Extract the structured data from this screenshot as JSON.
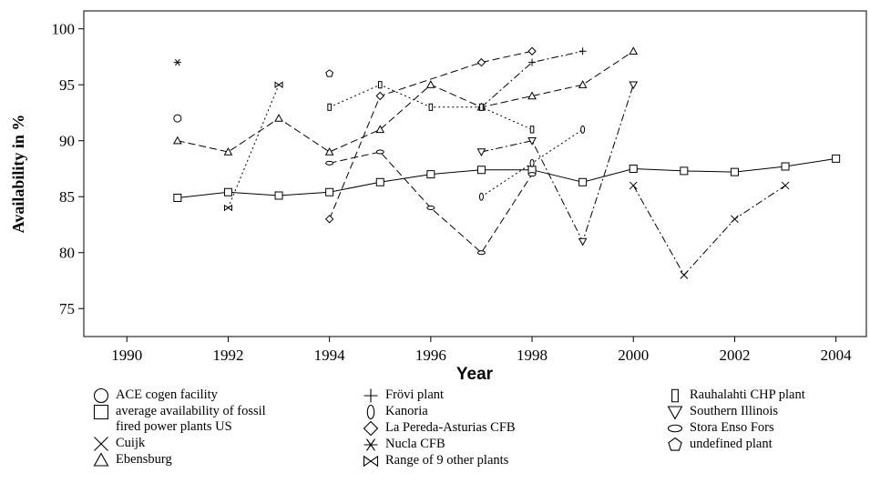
{
  "chart_data": {
    "type": "line",
    "y_label": "Availability in %",
    "x_label": "Year",
    "xlim": [
      1989.15,
      2004.6
    ],
    "ylim": [
      72.5,
      101.6
    ],
    "xticks": [
      1990,
      1992,
      1994,
      1996,
      1998,
      2000,
      2002,
      2004
    ],
    "yticks": [
      75,
      80,
      85,
      90,
      95,
      100
    ],
    "grid": false,
    "series": [
      {
        "name": "ACE cogen facility",
        "color": "#000000",
        "marker": "circle",
        "dash": "none",
        "x": [
          1991
        ],
        "values": [
          92
        ]
      },
      {
        "name": "average availability of fossil fired power plants US",
        "color": "#000000",
        "marker": "square",
        "dash": "solid",
        "x": [
          1991,
          1992,
          1993,
          1994,
          1995,
          1996,
          1997,
          1998,
          1999,
          2000,
          2001,
          2002,
          2003,
          2004
        ],
        "values": [
          84.9,
          85.4,
          85.1,
          85.4,
          86.3,
          87.0,
          87.4,
          87.4,
          86.3,
          87.5,
          87.3,
          87.2,
          87.7,
          88.4
        ]
      },
      {
        "name": "Cuijk",
        "color": "#000000",
        "marker": "x",
        "dash": "dashdot",
        "x": [
          2000,
          2001,
          2002,
          2003
        ],
        "values": [
          86,
          78,
          83,
          86
        ]
      },
      {
        "name": "Ebensburg",
        "color": "#000000",
        "marker": "triangle",
        "dash": "dashed",
        "x": [
          1991,
          1992,
          1993,
          1994,
          1995,
          1996,
          1997,
          1998,
          1999,
          2000
        ],
        "values": [
          90,
          89,
          92,
          89,
          91,
          95,
          93,
          94,
          95,
          98
        ]
      },
      {
        "name": "Frövi plant",
        "color": "#000000",
        "marker": "plus",
        "dash": "dashdot",
        "x": [
          1997,
          1998,
          1999
        ],
        "values": [
          93,
          97,
          98
        ]
      },
      {
        "name": "Kanoria",
        "color": "#000000",
        "marker": "vellipse",
        "dash": "dotted",
        "x": [
          1997,
          1998,
          1999
        ],
        "values": [
          85,
          88,
          91
        ]
      },
      {
        "name": "La Pereda-Asturias CFB",
        "color": "#000000",
        "marker": "diamond",
        "dash": "dashed",
        "x": [
          1994,
          1995,
          1997,
          1998
        ],
        "values": [
          83,
          94,
          97,
          98
        ]
      },
      {
        "name": "Nucla CFB",
        "color": "#000000",
        "marker": "asterisk",
        "dash": "none",
        "x": [
          1991,
          1997
        ],
        "values": [
          97,
          93
        ]
      },
      {
        "name": "Range of 9  other plants",
        "color": "#000000",
        "marker": "bowtie",
        "dash": "dotted",
        "x": [
          1992,
          1993
        ],
        "values": [
          84,
          95
        ]
      },
      {
        "name": "Rauhalahti CHP plant",
        "color": "#000000",
        "marker": "narrowrect",
        "dash": "dotted",
        "x": [
          1994,
          1995,
          1996,
          1997,
          1998
        ],
        "values": [
          93,
          95,
          93,
          93,
          91
        ]
      },
      {
        "name": "Southern Illinois",
        "color": "#000000",
        "marker": "downtriangle",
        "dash": "dashdot",
        "x": [
          1997,
          1998,
          1999,
          2000
        ],
        "values": [
          89,
          90,
          81,
          95
        ]
      },
      {
        "name": "Stora Enso Fors",
        "color": "#000000",
        "marker": "hellipse",
        "dash": "dashed",
        "x": [
          1994,
          1995,
          1996,
          1997,
          1998
        ],
        "values": [
          88,
          89,
          84,
          80,
          87
        ]
      },
      {
        "name": "undefined plant",
        "color": "#000000",
        "marker": "pentagon",
        "dash": "none",
        "x": [
          1994
        ],
        "values": [
          96
        ]
      }
    ]
  }
}
